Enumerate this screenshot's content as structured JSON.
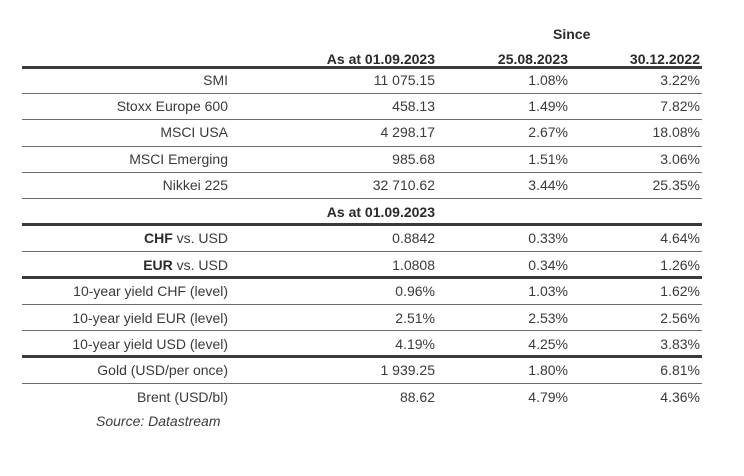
{
  "header": {
    "since": "Since",
    "col1": "As at 01.09.2023",
    "col2": "25.08.2023",
    "col3": "30.12.2022"
  },
  "equities": [
    {
      "name": "SMI",
      "level": "11 075.15",
      "since_week": "1.08%",
      "since_ytd": "3.22%"
    },
    {
      "name": "Stoxx Europe 600",
      "level": "458.13",
      "since_week": "1.49%",
      "since_ytd": "7.82%"
    },
    {
      "name": "MSCI USA",
      "level": "4 298.17",
      "since_week": "2.67%",
      "since_ytd": "18.08%"
    },
    {
      "name": "MSCI Emerging",
      "level": "985.68",
      "since_week": "1.51%",
      "since_ytd": "3.06%"
    },
    {
      "name": "Nikkei 225",
      "level": "32 710.62",
      "since_week": "3.44%",
      "since_ytd": "25.35%"
    }
  ],
  "subheader": "As at 01.09.2023",
  "fx": [
    {
      "code": "CHF",
      "suffix": " vs. USD",
      "level": "0.8842",
      "since_week": "0.33%",
      "since_ytd": "4.64%"
    },
    {
      "code": "EUR",
      "suffix": " vs. USD",
      "level": "1.0808",
      "since_week": "0.34%",
      "since_ytd": "1.26%"
    }
  ],
  "yields": [
    {
      "name": "10-year yield CHF (level)",
      "level": "0.96%",
      "since_week": "1.03%",
      "since_ytd": "1.62%"
    },
    {
      "name": "10-year yield EUR (level)",
      "level": "2.51%",
      "since_week": "2.53%",
      "since_ytd": "2.56%"
    },
    {
      "name": "10-year yield USD (level)",
      "level": "4.19%",
      "since_week": "4.25%",
      "since_ytd": "3.83%"
    }
  ],
  "commodities": [
    {
      "name": "Gold (USD/per once)",
      "level": "1 939.25",
      "since_week": "1.80%",
      "since_ytd": "6.81%"
    },
    {
      "name": "Brent (USD/bl)",
      "level": "88.62",
      "since_week": "4.79%",
      "since_ytd": "4.36%"
    }
  ],
  "source": "Source: Datastream"
}
